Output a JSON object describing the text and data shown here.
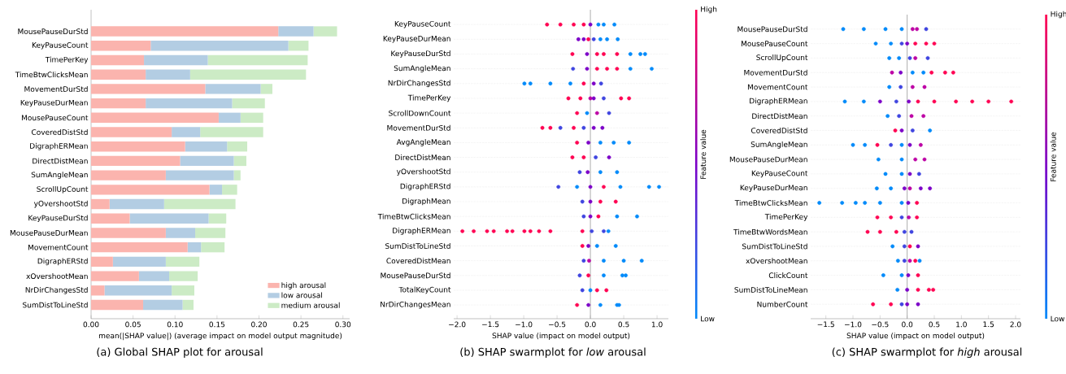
{
  "chart_data": [
    {
      "type": "bar",
      "orientation": "horizontal",
      "stacked": true,
      "title": "(a) Global SHAP plot for arousal",
      "xlabel": "mean(|SHAP value|) (average impact on model output magnitude)",
      "categories": [
        "MousePauseDurStd",
        "KeyPauseCount",
        "TimePerKey",
        "TimeBtwClicksMean",
        "MovementDurStd",
        "KeyPauseDurMean",
        "MousePauseCount",
        "CoveredDistStd",
        "DigraphERMean",
        "DirectDistMean",
        "SumAngleMean",
        "ScrollUpCount",
        "yOvershootStd",
        "KeyPauseDurStd",
        "MousePauseDurMean",
        "MovementCount",
        "DigraphERStd",
        "xOvershootMean",
        "NrDirChangesStd",
        "SumDistToLineStd"
      ],
      "series": [
        {
          "name": "high arousal",
          "color": "#fbb4ae",
          "values": [
            0.223,
            0.071,
            0.063,
            0.065,
            0.136,
            0.065,
            0.152,
            0.096,
            0.112,
            0.106,
            0.089,
            0.141,
            0.022,
            0.046,
            0.089,
            0.115,
            0.026,
            0.057,
            0.016,
            0.062
          ]
        },
        {
          "name": "low arousal",
          "color": "#b3cde3",
          "values": [
            0.042,
            0.164,
            0.076,
            0.053,
            0.066,
            0.103,
            0.026,
            0.034,
            0.05,
            0.064,
            0.081,
            0.015,
            0.065,
            0.094,
            0.035,
            0.016,
            0.063,
            0.036,
            0.08,
            0.047
          ]
        },
        {
          "name": "medium arousal",
          "color": "#ccebc5",
          "values": [
            0.028,
            0.024,
            0.119,
            0.138,
            0.014,
            0.039,
            0.027,
            0.075,
            0.024,
            0.015,
            0.008,
            0.018,
            0.085,
            0.021,
            0.036,
            0.028,
            0.04,
            0.034,
            0.027,
            0.013
          ]
        }
      ],
      "xlim": [
        0,
        0.308
      ],
      "xticks": [
        {
          "value": 0,
          "label": "0.00"
        },
        {
          "value": 0.05,
          "label": "0.05"
        },
        {
          "value": 0.1,
          "label": "0.10"
        },
        {
          "value": 0.15,
          "label": "0.15"
        },
        {
          "value": 0.2,
          "label": "0.20"
        },
        {
          "value": 0.25,
          "label": "0.25"
        },
        {
          "value": 0.3,
          "label": "0.30"
        }
      ],
      "legend": "bottom right"
    },
    {
      "type": "scatter",
      "orientation": "horizontal",
      "title": "(b) SHAP swarmplot for *low* arousal",
      "xlabel": "SHAP value (impact on model output)",
      "clabel": "Feature value",
      "annotations": [
        "High",
        "Low"
      ],
      "marker": "circle",
      "grid": "y",
      "categories": [
        "KeyPauseCount",
        "KeyPauseDurMean",
        "KeyPauseDurStd",
        "SumAngleMean",
        "NrDirChangesStd",
        "TimePerKey",
        "ScrollDownCount",
        "MovementDurStd",
        "AvgAngleMean",
        "DirectDistMean",
        "yOvershootStd",
        "DigraphERStd",
        "DigraphMean",
        "TimeBtwClicksMean",
        "DigraphERMean",
        "SumDistToLineStd",
        "CoveredDistMean",
        "MousePauseDurStd",
        "TotalKeyCount",
        "NrDirChangesMean"
      ],
      "series": [
        {
          "x": [
            "KeyPauseCount",
            "KeyPauseCount",
            "KeyPauseCount",
            "KeyPauseCount",
            "KeyPauseCount",
            "KeyPauseCount",
            "KeyPauseCount",
            "KeyPauseCount",
            "KeyPauseDurMean",
            "KeyPauseDurMean",
            "KeyPauseDurMean",
            "KeyPauseDurMean",
            "KeyPauseDurMean",
            "KeyPauseDurMean",
            "KeyPauseDurMean",
            "KeyPauseDurStd",
            "KeyPauseDurStd",
            "KeyPauseDurStd",
            "KeyPauseDurStd",
            "KeyPauseDurStd",
            "KeyPauseDurStd",
            "KeyPauseDurStd",
            "KeyPauseDurStd",
            "SumAngleMean",
            "SumAngleMean",
            "SumAngleMean",
            "SumAngleMean",
            "SumAngleMean",
            "SumAngleMean",
            "SumAngleMean",
            "NrDirChangesStd",
            "NrDirChangesStd",
            "NrDirChangesStd",
            "NrDirChangesStd",
            "NrDirChangesStd",
            "NrDirChangesStd",
            "NrDirChangesStd",
            "TimePerKey",
            "TimePerKey",
            "TimePerKey",
            "TimePerKey",
            "TimePerKey",
            "TimePerKey",
            "TimePerKey",
            "ScrollDownCount",
            "ScrollDownCount",
            "ScrollDownCount",
            "ScrollDownCount",
            "MovementDurStd",
            "MovementDurStd",
            "MovementDurStd",
            "MovementDurStd",
            "MovementDurStd",
            "MovementDurStd",
            "MovementDurStd",
            "AvgAngleMean",
            "AvgAngleMean",
            "AvgAngleMean",
            "AvgAngleMean",
            "AvgAngleMean",
            "DirectDistMean",
            "DirectDistMean",
            "DirectDistMean",
            "DirectDistMean",
            "yOvershootStd",
            "yOvershootStd",
            "yOvershootStd",
            "yOvershootStd",
            "DigraphERStd",
            "DigraphERStd",
            "DigraphERStd",
            "DigraphERStd",
            "DigraphERStd",
            "DigraphERStd",
            "DigraphERStd",
            "DigraphMean",
            "DigraphMean",
            "DigraphMean",
            "DigraphMean",
            "TimeBtwClicksMean",
            "TimeBtwClicksMean",
            "TimeBtwClicksMean",
            "TimeBtwClicksMean",
            "TimeBtwClicksMean",
            "DigraphERMean",
            "DigraphERMean",
            "DigraphERMean",
            "DigraphERMean",
            "DigraphERMean",
            "DigraphERMean",
            "DigraphERMean",
            "DigraphERMean",
            "DigraphERMean",
            "DigraphERMean",
            "DigraphERMean",
            "DigraphERMean",
            "DigraphERMean",
            "DigraphERMean",
            "SumDistToLineStd",
            "SumDistToLineStd",
            "SumDistToLineStd",
            "SumDistToLineStd",
            "CoveredDistMean",
            "CoveredDistMean",
            "CoveredDistMean",
            "CoveredDistMean",
            "CoveredDistMean",
            "MousePauseDurStd",
            "MousePauseDurStd",
            "MousePauseDurStd",
            "MousePauseDurStd",
            "MousePauseDurStd",
            "TotalKeyCount",
            "TotalKeyCount",
            "TotalKeyCount",
            "TotalKeyCount",
            "NrDirChangesMean",
            "NrDirChangesMean",
            "NrDirChangesMean",
            "NrDirChangesMean",
            "NrDirChangesMean"
          ],
          "values": [
            -0.65,
            -0.45,
            -0.25,
            -0.1,
            0.0,
            0.12,
            0.2,
            0.36,
            -0.18,
            -0.1,
            -0.03,
            0.05,
            0.15,
            0.25,
            0.41,
            -0.27,
            -0.05,
            0.1,
            0.2,
            0.4,
            0.6,
            0.75,
            0.82,
            -0.26,
            -0.05,
            0.1,
            0.25,
            0.4,
            0.6,
            0.92,
            -0.99,
            -0.9,
            -0.6,
            -0.3,
            -0.1,
            0.05,
            0.16,
            -0.33,
            -0.15,
            0.0,
            0.05,
            0.2,
            0.46,
            0.58,
            -0.2,
            -0.05,
            0.1,
            0.28,
            -0.72,
            -0.6,
            -0.45,
            -0.25,
            -0.1,
            0.05,
            0.18,
            -0.2,
            -0.03,
            0.15,
            0.35,
            0.58,
            -0.27,
            -0.1,
            0.08,
            0.28,
            -0.16,
            -0.04,
            0.15,
            0.4,
            -0.48,
            -0.2,
            0.0,
            0.2,
            0.45,
            0.88,
            1.03,
            -0.12,
            0.0,
            0.15,
            0.38,
            -0.1,
            0.0,
            0.12,
            0.4,
            0.7,
            -1.92,
            -1.75,
            -1.55,
            -1.45,
            -1.25,
            -1.17,
            -0.99,
            -0.9,
            -0.77,
            -0.6,
            -0.12,
            0.02,
            0.2,
            0.27,
            -0.12,
            -0.03,
            0.1,
            0.38,
            -0.1,
            -0.02,
            0.2,
            0.5,
            0.77,
            -0.16,
            -0.03,
            0.2,
            0.48,
            0.53,
            -0.12,
            0.0,
            0.1,
            0.24,
            -0.2,
            -0.03,
            0.15,
            0.4,
            0.43
          ],
          "colors": [
            "#ff0052",
            "#ff0052",
            "#ff0052",
            "#ff0052",
            "#7c00c8",
            "#008afa",
            "#008afa",
            "#008afa",
            "#7c00c8",
            "#7c00c8",
            "#ff0052",
            "#3f45e0",
            "#008afa",
            "#008afa",
            "#008afa",
            "#ff0052",
            "#7c00c8",
            "#ff0052",
            "#ff0052",
            "#ff0052",
            "#008afa",
            "#008afa",
            "#008afa",
            "#3f45e0",
            "#7c00c8",
            "#ff0052",
            "#ff0052",
            "#ff0052",
            "#008afa",
            "#008afa",
            "#008afa",
            "#008afa",
            "#008afa",
            "#008afa",
            "#ff0052",
            "#7c00c8",
            "#3f45e0",
            "#ff0052",
            "#ff0052",
            "#bd00a5",
            "#7c00c8",
            "#3f45e0",
            "#ff0052",
            "#ff0052",
            "#ff0052",
            "#008afa",
            "#bd00a5",
            "#3f45e0",
            "#ff0052",
            "#ff0052",
            "#3f45e0",
            "#ff0052",
            "#3f45e0",
            "#7c00c8",
            "#7c00c8",
            "#ff0052",
            "#7c00c8",
            "#008afa",
            "#008afa",
            "#008afa",
            "#ff0052",
            "#ff0052",
            "#3f45e0",
            "#7c00c8",
            "#3f45e0",
            "#7c00c8",
            "#008afa",
            "#008afa",
            "#3f45e0",
            "#008afa",
            "#7c00c8",
            "#ff0052",
            "#008afa",
            "#008afa",
            "#008afa",
            "#3f45e0",
            "#7c00c8",
            "#ff0052",
            "#ff0052",
            "#3f45e0",
            "#7c00c8",
            "#ff0052",
            "#008afa",
            "#008afa",
            "#ff0052",
            "#ff0052",
            "#ff0052",
            "#ff0052",
            "#ff0052",
            "#ff0052",
            "#ff0052",
            "#ff0052",
            "#ff0052",
            "#ff0052",
            "#ff0052",
            "#3f45e0",
            "#3f45e0",
            "#008afa",
            "#ff0052",
            "#7c00c8",
            "#008afa",
            "#008afa",
            "#3f45e0",
            "#bd00a5",
            "#008afa",
            "#008afa",
            "#008afa",
            "#3f45e0",
            "#ff0052",
            "#008afa",
            "#008afa",
            "#008afa",
            "#3f45e0",
            "#008afa",
            "#ff0052",
            "#ff0052",
            "#ff0052",
            "#7c00c8",
            "#008afa",
            "#008afa",
            "#008afa"
          ]
        }
      ],
      "xlim": [
        -2.05,
        1.17
      ],
      "xticks": [
        {
          "value": -2,
          "label": "−2.0"
        },
        {
          "value": -1.5,
          "label": "−1.5"
        },
        {
          "value": -1,
          "label": "−1.0"
        },
        {
          "value": -0.5,
          "label": "−0.5"
        },
        {
          "value": 0,
          "label": "0.0"
        },
        {
          "value": 0.5,
          "label": "0.5"
        },
        {
          "value": 1,
          "label": "1.0"
        }
      ],
      "ref_lines": [
        {
          "axis": "x",
          "value": 0,
          "color": "#999999"
        }
      ]
    },
    {
      "type": "scatter",
      "orientation": "horizontal",
      "title": "(c) SHAP swarmplot for *high* arousal",
      "xlabel": "SHAP value (impact on model output)",
      "clabel": "Feature value",
      "annotations": [
        "High",
        "Low"
      ],
      "marker": "circle",
      "grid": "y",
      "categories": [
        "MousePauseDurStd",
        "MousePauseCount",
        "ScrollUpCount",
        "MovementDurStd",
        "MovementCount",
        "DigraphERMean",
        "DirectDistMean",
        "CoveredDistStd",
        "SumAngleMean",
        "MousePauseDurMean",
        "KeyPauseCount",
        "KeyPauseDurMean",
        "TimeBtwClicksMean",
        "TimePerKey",
        "TimeBtwWordsMean",
        "SumDistToLineStd",
        "xOvershootMean",
        "ClickCount",
        "SumDistToLineMean",
        "NumberCount"
      ],
      "series": [
        {
          "x": [
            "MousePauseDurStd",
            "MousePauseDurStd",
            "MousePauseDurStd",
            "MousePauseDurStd",
            "MousePauseDurStd",
            "MousePauseDurStd",
            "MousePauseDurStd",
            "MousePauseCount",
            "MousePauseCount",
            "MousePauseCount",
            "MousePauseCount",
            "MousePauseCount",
            "MousePauseCount",
            "MousePauseCount",
            "ScrollUpCount",
            "ScrollUpCount",
            "ScrollUpCount",
            "ScrollUpCount",
            "ScrollUpCount",
            "MovementDurStd",
            "MovementDurStd",
            "MovementDurStd",
            "MovementDurStd",
            "MovementDurStd",
            "MovementDurStd",
            "MovementDurStd",
            "MovementCount",
            "MovementCount",
            "MovementCount",
            "MovementCount",
            "DigraphERMean",
            "DigraphERMean",
            "DigraphERMean",
            "DigraphERMean",
            "DigraphERMean",
            "DigraphERMean",
            "DigraphERMean",
            "DigraphERMean",
            "DigraphERMean",
            "DigraphERMean",
            "DigraphERMean",
            "DirectDistMean",
            "DirectDistMean",
            "DirectDistMean",
            "DirectDistMean",
            "CoveredDistStd",
            "CoveredDistStd",
            "CoveredDistStd",
            "CoveredDistStd",
            "SumAngleMean",
            "SumAngleMean",
            "SumAngleMean",
            "SumAngleMean",
            "SumAngleMean",
            "SumAngleMean",
            "SumAngleMean",
            "MousePauseDurMean",
            "MousePauseDurMean",
            "MousePauseDurMean",
            "MousePauseDurMean",
            "KeyPauseCount",
            "KeyPauseCount",
            "KeyPauseCount",
            "KeyPauseCount",
            "KeyPauseDurMean",
            "KeyPauseDurMean",
            "KeyPauseDurMean",
            "KeyPauseDurMean",
            "KeyPauseDurMean",
            "KeyPauseDurMean",
            "TimeBtwClicksMean",
            "TimeBtwClicksMean",
            "TimeBtwClicksMean",
            "TimeBtwClicksMean",
            "TimeBtwClicksMean",
            "TimeBtwClicksMean",
            "TimeBtwClicksMean",
            "TimeBtwClicksMean",
            "TimePerKey",
            "TimePerKey",
            "TimePerKey",
            "TimePerKey",
            "TimePerKey",
            "TimeBtwWordsMean",
            "TimeBtwWordsMean",
            "TimeBtwWordsMean",
            "TimeBtwWordsMean",
            "TimeBtwWordsMean",
            "SumDistToLineStd",
            "SumDistToLineStd",
            "SumDistToLineStd",
            "SumDistToLineStd",
            "xOvershootMean",
            "xOvershootMean",
            "xOvershootMean",
            "xOvershootMean",
            "xOvershootMean",
            "ClickCount",
            "ClickCount",
            "ClickCount",
            "ClickCount",
            "SumDistToLineMean",
            "SumDistToLineMean",
            "SumDistToLineMean",
            "SumDistToLineMean",
            "SumDistToLineMean",
            "NumberCount",
            "NumberCount",
            "NumberCount",
            "NumberCount",
            "NumberCount"
          ],
          "values": [
            -1.18,
            -0.8,
            -0.4,
            -0.1,
            0.1,
            0.18,
            0.35,
            -0.58,
            -0.3,
            -0.1,
            0.0,
            0.15,
            0.35,
            0.5,
            -0.33,
            -0.15,
            0.05,
            0.15,
            0.38,
            -0.28,
            -0.12,
            0.1,
            0.3,
            0.45,
            0.7,
            0.85,
            -0.33,
            -0.12,
            0.1,
            0.32,
            -1.15,
            -0.8,
            -0.5,
            -0.2,
            0.03,
            0.2,
            0.5,
            0.9,
            1.2,
            1.5,
            1.92,
            -0.36,
            -0.15,
            0.08,
            0.3,
            -0.22,
            -0.1,
            0.1,
            0.42,
            -1.0,
            -0.78,
            -0.55,
            -0.3,
            -0.1,
            0.05,
            0.25,
            -0.53,
            -0.1,
            0.15,
            0.32,
            -0.4,
            -0.1,
            0.05,
            0.22,
            -0.56,
            -0.3,
            -0.05,
            0.05,
            0.25,
            0.42,
            -1.62,
            -1.2,
            -0.95,
            -0.78,
            -0.5,
            -0.1,
            0.02,
            0.18,
            -0.55,
            -0.3,
            -0.1,
            0.03,
            0.18,
            -0.73,
            -0.5,
            -0.2,
            -0.05,
            0.08,
            -0.27,
            -0.05,
            0.05,
            0.2,
            -0.17,
            -0.05,
            0.05,
            0.15,
            0.23,
            -0.44,
            -0.1,
            0.02,
            0.2,
            -0.18,
            0.0,
            0.2,
            0.4,
            0.48,
            -0.63,
            -0.3,
            -0.1,
            0.0,
            0.2
          ],
          "colors": [
            "#008afa",
            "#008afa",
            "#008afa",
            "#008afa",
            "#bd00a5",
            "#bd00a5",
            "#3f45e0",
            "#008afa",
            "#008afa",
            "#3f45e0",
            "#7c00c8",
            "#ff0052",
            "#ff0052",
            "#ff0052",
            "#008afa",
            "#008afa",
            "#3f45e0",
            "#bd00a5",
            "#3f45e0",
            "#bd00a5",
            "#7c00c8",
            "#008afa",
            "#008afa",
            "#ff0052",
            "#ff0052",
            "#ff0052",
            "#008afa",
            "#3f45e0",
            "#bd00a5",
            "#bd00a5",
            "#008afa",
            "#008afa",
            "#7c00c8",
            "#3f45e0",
            "#7c00c8",
            "#ff0052",
            "#ff0052",
            "#ff0052",
            "#ff0052",
            "#ff0052",
            "#ff0052",
            "#008afa",
            "#3f45e0",
            "#bd00a5",
            "#bd00a5",
            "#ff0052",
            "#7c00c8",
            "#3f45e0",
            "#008afa",
            "#008afa",
            "#008afa",
            "#ff0052",
            "#3f45e0",
            "#008afa",
            "#7c00c8",
            "#bd00a5",
            "#008afa",
            "#008afa",
            "#bd00a5",
            "#bd00a5",
            "#008afa",
            "#008afa",
            "#7c00c8",
            "#3f45e0",
            "#008afa",
            "#008afa",
            "#7c00c8",
            "#bd00a5",
            "#7c00c8",
            "#7c00c8",
            "#008afa",
            "#008afa",
            "#008afa",
            "#008afa",
            "#008afa",
            "#008afa",
            "#7c00c8",
            "#ff0052",
            "#ff0052",
            "#ff0052",
            "#3f45e0",
            "#bd00a5",
            "#ff0052",
            "#ff0052",
            "#ff0052",
            "#ff0052",
            "#3f45e0",
            "#3f45e0",
            "#008afa",
            "#3f45e0",
            "#ff0052",
            "#7c00c8",
            "#008afa",
            "#3f45e0",
            "#bd00a5",
            "#ff0052",
            "#008afa",
            "#008afa",
            "#008afa",
            "#7c00c8",
            "#ff0052",
            "#008afa",
            "#7c00c8",
            "#ff0052",
            "#ff0052",
            "#ff0052",
            "#ff0052",
            "#ff0052",
            "#3f45e0",
            "#7c00c8",
            "#7c00c8"
          ]
        }
      ],
      "xlim": [
        -1.78,
        2.09
      ],
      "xticks": [
        {
          "value": -1.5,
          "label": "−1.5"
        },
        {
          "value": -1,
          "label": "−1.0"
        },
        {
          "value": -0.5,
          "label": "−0.5"
        },
        {
          "value": 0,
          "label": "0.0"
        },
        {
          "value": 0.5,
          "label": "0.5"
        },
        {
          "value": 1,
          "label": "1.0"
        },
        {
          "value": 1.5,
          "label": "1.5"
        },
        {
          "value": 2,
          "label": "2.0"
        }
      ],
      "ref_lines": [
        {
          "axis": "x",
          "value": 0,
          "color": "#999999"
        }
      ]
    }
  ]
}
